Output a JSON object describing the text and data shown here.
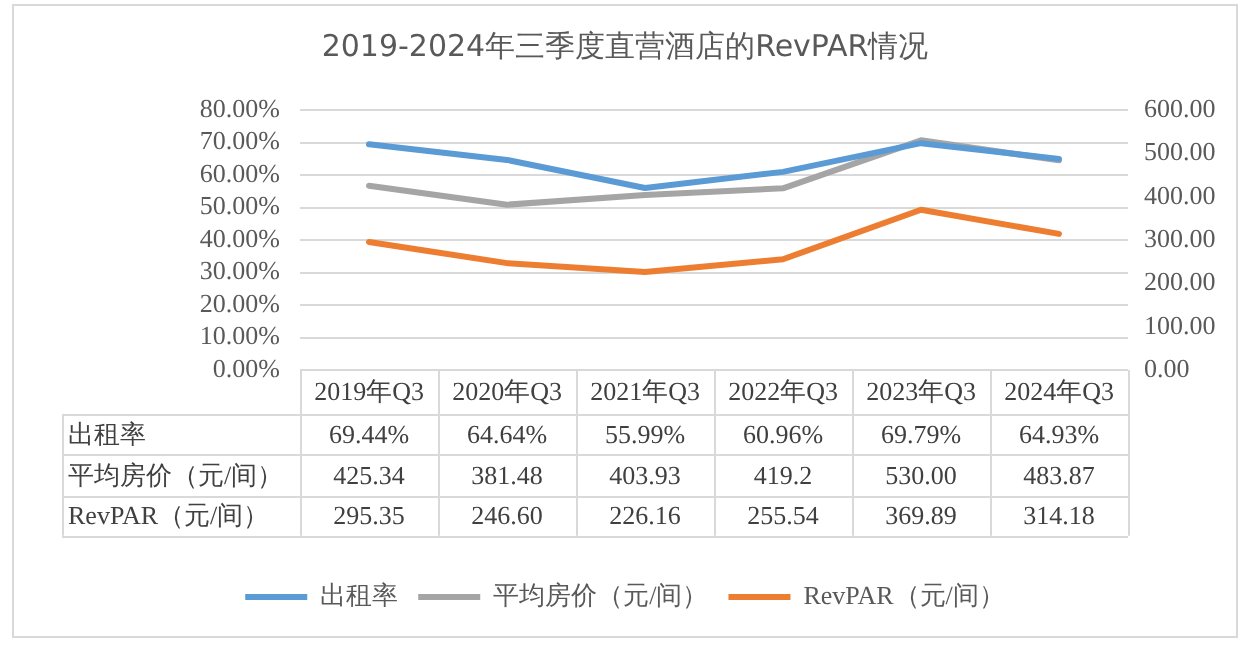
{
  "chart_data": {
    "type": "line",
    "title": "2019-2024年三季度直营酒店的RevPAR情况",
    "categories": [
      "2019年Q3",
      "2020年Q3",
      "2021年Q3",
      "2022年Q3",
      "2023年Q3",
      "2024年Q3"
    ],
    "series": [
      {
        "name": "出租率",
        "color": "#5b9bd5",
        "values": [
          69.44,
          64.64,
          55.99,
          60.96,
          69.79,
          64.93
        ],
        "value_labels": [
          "69.44%",
          "64.64%",
          "55.99%",
          "60.96%",
          "69.79%",
          "64.93%"
        ]
      },
      {
        "name": "平均房价（元/间）",
        "color": "#a5a5a5",
        "axis": "y2",
        "values": [
          425.34,
          381.48,
          403.93,
          419.2,
          530.0,
          483.87
        ],
        "value_labels": [
          "425.34",
          "381.48",
          "403.93",
          "419.2",
          "530.00",
          "483.87"
        ]
      },
      {
        "name": "RevPAR（元/间）",
        "color": "#ed7d31",
        "axis": "y2",
        "values": [
          295.35,
          246.6,
          226.16,
          255.54,
          369.89,
          314.18
        ],
        "value_labels": [
          "295.35",
          "246.60",
          "226.16",
          "255.54",
          "369.89",
          "314.18"
        ]
      }
    ],
    "ylim": [
      0,
      80
    ],
    "yticks": [
      {
        "value": 0,
        "label": "0.00%"
      },
      {
        "value": 10,
        "label": "10.00%"
      },
      {
        "value": 20,
        "label": "20.00%"
      },
      {
        "value": 30,
        "label": "30.00%"
      },
      {
        "value": 40,
        "label": "40.00%"
      },
      {
        "value": 50,
        "label": "50.00%"
      },
      {
        "value": 60,
        "label": "60.00%"
      },
      {
        "value": 70,
        "label": "70.00%"
      },
      {
        "value": 80,
        "label": "80.00%"
      }
    ],
    "y2lim": [
      0,
      600
    ],
    "y2ticks": [
      {
        "value": 0,
        "label": "0.00"
      },
      {
        "value": 100,
        "label": "100.00"
      },
      {
        "value": 200,
        "label": "200.00"
      },
      {
        "value": 300,
        "label": "300.00"
      },
      {
        "value": 400,
        "label": "400.00"
      },
      {
        "value": 500,
        "label": "500.00"
      },
      {
        "value": 600,
        "label": "600.00"
      }
    ],
    "grid": "y",
    "legend": "bottom",
    "marker": "none"
  }
}
